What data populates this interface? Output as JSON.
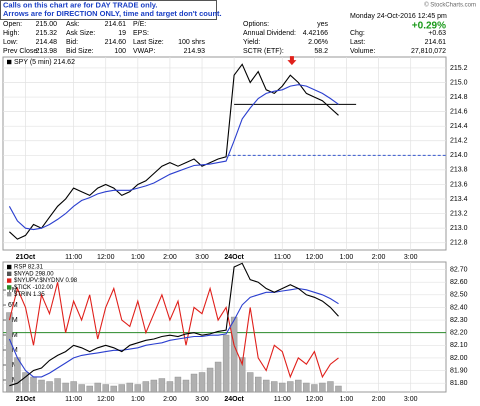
{
  "notice": [
    "Calls on this chart are for DAY TRADE only.",
    "Arrows are for DIRECTION ONLY, time and target don't count."
  ],
  "copyright": "© StockCharts.com",
  "quote": {
    "rows": [
      [
        [
          "Open:",
          "215.00"
        ],
        [
          "Ask:",
          "214.61"
        ],
        [
          "P/E:"
        ],
        [
          "Options:",
          "yes"
        ]
      ],
      [
        [
          "High:",
          "215.32"
        ],
        [
          "Ask Size:",
          "19"
        ],
        [
          "EPS:"
        ],
        [
          "Annual Dividend:",
          "4.42166"
        ]
      ],
      [
        [
          "Low:",
          "214.48"
        ],
        [
          "Bid:",
          "214.60"
        ],
        [
          "Last Size:",
          "100 shrs"
        ],
        [
          "Yield:",
          "2.06%"
        ]
      ],
      [
        [
          "Prev Close:",
          "213.98"
        ],
        [
          "Bid Size:",
          "100"
        ],
        [
          "VWAP:",
          "214.93"
        ],
        [
          "SCTR (ETF):",
          "58.2"
        ]
      ]
    ],
    "date": "Monday 24-Oct-2016 12:45 pm",
    "change_pct": "+0.29%",
    "side": [
      [
        "Chg:",
        "+0.63"
      ],
      [
        "Last:",
        "214.61"
      ],
      [
        "Volume:",
        "27,810,072"
      ]
    ]
  },
  "chart_data": [
    {
      "type": "line",
      "legend": [
        {
          "name": "SPY (5 min) 214.62",
          "color": "#000000"
        }
      ],
      "x": [
        -0.5,
        -0.25,
        0,
        0.25,
        0.5,
        0.75,
        1,
        1.25,
        1.5,
        1.75,
        2,
        2.25,
        2.5,
        2.75,
        3,
        3.25,
        3.5,
        3.75,
        4,
        4.25,
        4.5,
        4.75,
        5,
        5.25,
        5.5,
        5.75,
        6,
        6.25,
        6.5,
        6.75,
        7,
        7.25,
        7.5,
        7.75,
        8,
        8.25,
        8.5,
        8.75,
        9,
        9.25,
        9.5,
        9.75
      ],
      "series": [
        {
          "color": "#000000",
          "values": [
            212.95,
            212.85,
            212.9,
            213.05,
            213.0,
            213.15,
            213.3,
            213.4,
            213.55,
            213.5,
            213.45,
            213.55,
            213.6,
            213.55,
            213.45,
            213.5,
            213.6,
            213.65,
            213.75,
            213.85,
            213.9,
            213.85,
            213.9,
            213.95,
            213.85,
            213.9,
            213.95,
            213.98,
            215.1,
            215.25,
            215.0,
            215.15,
            214.9,
            214.85,
            214.95,
            215.1,
            215.0,
            214.85,
            214.8,
            214.75,
            214.65,
            214.55
          ]
        },
        {
          "color": "#2b3fcf",
          "values": [
            213.3,
            213.1,
            213.0,
            212.98,
            213.0,
            213.05,
            213.12,
            213.2,
            213.3,
            213.38,
            213.42,
            213.47,
            213.5,
            213.52,
            213.52,
            213.52,
            213.55,
            213.58,
            213.62,
            213.68,
            213.74,
            213.78,
            213.82,
            213.86,
            213.87,
            213.88,
            213.9,
            213.92,
            214.2,
            214.5,
            214.65,
            214.78,
            214.85,
            214.88,
            214.9,
            214.95,
            214.97,
            214.95,
            214.9,
            214.85,
            214.78,
            214.7
          ]
        }
      ],
      "hlines": [
        {
          "y": 214.7,
          "x": [
            6.5,
            10.3
          ],
          "color": "#000000"
        },
        {
          "y": 214.0,
          "x": [
            6.3,
            13.1
          ],
          "color": "#3355cc",
          "dashed": true
        }
      ],
      "arrows": [
        {
          "x": 8.3,
          "y": 215.28,
          "color": "#e0201b"
        }
      ],
      "xlim": [
        -0.7,
        13.1
      ],
      "ylim": [
        212.7,
        215.35
      ],
      "grid": true,
      "xticks": [
        {
          "value": 0,
          "label": "21Oct"
        },
        {
          "value": 1.5,
          "label": "11:00"
        },
        {
          "value": 2.5,
          "label": "12:00"
        },
        {
          "value": 3.5,
          "label": "1:00"
        },
        {
          "value": 4.5,
          "label": "2:00"
        },
        {
          "value": 5.5,
          "label": "3:00"
        },
        {
          "value": 6.5,
          "label": "24Oct"
        },
        {
          "value": 8,
          "label": "11:00"
        },
        {
          "value": 9,
          "label": "12:00"
        },
        {
          "value": 10,
          "label": "1:00"
        },
        {
          "value": 11,
          "label": "2:00"
        },
        {
          "value": 12,
          "label": "3:00"
        }
      ],
      "yticks": [
        212.8,
        {
          "value": 213,
          "label": "213.0"
        },
        213.2,
        213.4,
        213.6,
        213.8,
        {
          "value": 214,
          "label": "214.0"
        },
        214.2,
        214.4,
        214.6,
        214.8,
        {
          "value": 215,
          "label": "215.0"
        },
        215.2
      ]
    },
    {
      "type": "line",
      "legend": [
        {
          "name": "RSP 82.31",
          "color": "#000000"
        },
        {
          "name": "$NYAD 298.00",
          "color": "#555555"
        },
        {
          "name": "$NYUPV:$NYDNV 0.98",
          "color": "#e0201b"
        },
        {
          "name": "$TICK -102.00",
          "color": "#2a8a2a"
        },
        {
          "name": "$TRIN 1.35",
          "color": "#999999"
        }
      ],
      "x": [
        -0.5,
        -0.25,
        0,
        0.25,
        0.5,
        0.75,
        1,
        1.25,
        1.5,
        1.75,
        2,
        2.25,
        2.5,
        2.75,
        3,
        3.25,
        3.5,
        3.75,
        4,
        4.25,
        4.5,
        4.75,
        5,
        5.25,
        5.5,
        5.75,
        6,
        6.25,
        6.5,
        6.75,
        7,
        7.25,
        7.5,
        7.75,
        8,
        8.25,
        8.5,
        8.75,
        9,
        9.25,
        9.5,
        9.75
      ],
      "series": [
        {
          "type": "bar",
          "axis": "y2",
          "color": "#b0b0b0",
          "values": [
            5.5,
            2.5,
            1.5,
            1.2,
            1.0,
            0.9,
            1.1,
            0.8,
            0.9,
            0.7,
            0.6,
            0.8,
            0.7,
            0.6,
            0.7,
            0.8,
            0.7,
            0.9,
            1.0,
            1.1,
            0.9,
            1.2,
            1.0,
            1.4,
            1.5,
            1.8,
            2.2,
            4.0,
            5.2,
            2.5,
            1.5,
            1.2,
            1.0,
            0.9,
            0.8,
            0.9,
            1.0,
            0.8,
            0.7,
            0.8,
            0.9,
            0.6
          ]
        },
        {
          "color": "#e0201b",
          "values": [
            82.3,
            82.55,
            82.4,
            82.1,
            82.5,
            82.35,
            82.6,
            82.2,
            82.45,
            82.3,
            82.5,
            82.15,
            82.4,
            82.55,
            82.3,
            82.25,
            82.45,
            82.2,
            82.35,
            82.5,
            82.3,
            82.45,
            82.1,
            82.4,
            82.35,
            82.55,
            82.3,
            82.4,
            82.1,
            81.95,
            82.4,
            82.0,
            81.9,
            82.1,
            82.05,
            81.85,
            82.0,
            81.95,
            82.05,
            81.85,
            81.95,
            82.0
          ]
        },
        {
          "color": "#2b3fcf",
          "values": [
            82.15,
            82.0,
            81.9,
            81.85,
            81.85,
            81.88,
            81.92,
            81.96,
            82.0,
            82.02,
            82.03,
            82.04,
            82.05,
            82.06,
            82.06,
            82.07,
            82.08,
            82.1,
            82.11,
            82.12,
            82.14,
            82.15,
            82.16,
            82.17,
            82.17,
            82.18,
            82.18,
            82.19,
            82.3,
            82.42,
            82.48,
            82.5,
            82.52,
            82.52,
            82.53,
            82.54,
            82.55,
            82.54,
            82.52,
            82.5,
            82.47,
            82.43
          ]
        },
        {
          "color": "#000000",
          "values": [
            81.78,
            81.8,
            81.85,
            81.9,
            81.92,
            81.98,
            82.02,
            82.05,
            82.1,
            82.08,
            82.05,
            82.08,
            82.1,
            82.08,
            82.05,
            82.1,
            82.12,
            82.14,
            82.15,
            82.17,
            82.18,
            82.17,
            82.19,
            82.2,
            82.18,
            82.19,
            82.21,
            82.22,
            82.72,
            82.75,
            82.62,
            82.6,
            82.55,
            82.52,
            82.55,
            82.58,
            82.55,
            82.5,
            82.48,
            82.45,
            82.4,
            82.33
          ]
        }
      ],
      "hlines": [
        {
          "y": 82.2,
          "x": [
            -0.7,
            13.1
          ],
          "color": "#2a8a2a"
        }
      ],
      "xlim": [
        -0.7,
        13.1
      ],
      "ylim": [
        81.73,
        82.76
      ],
      "y2lim": [
        0.2,
        8.87
      ],
      "grid": true,
      "xticks": [
        {
          "value": 0,
          "label": "21Oct"
        },
        {
          "value": 1.5,
          "label": "11:00"
        },
        {
          "value": 2.5,
          "label": "12:00"
        },
        {
          "value": 3.5,
          "label": "1:00"
        },
        {
          "value": 4.5,
          "label": "2:00"
        },
        {
          "value": 5.5,
          "label": "3:00"
        },
        {
          "value": 6.5,
          "label": "24Oct"
        },
        {
          "value": 8,
          "label": "11:00"
        },
        {
          "value": 9,
          "label": "12:00"
        },
        {
          "value": 10,
          "label": "1:00"
        },
        {
          "value": 11,
          "label": "2:00"
        },
        {
          "value": 12,
          "label": "3:00"
        }
      ],
      "yticks": [
        {
          "value": 81.8,
          "label": "81.80"
        },
        {
          "value": 81.9,
          "label": "81.90"
        },
        {
          "value": 82.0,
          "label": "82.00"
        },
        {
          "value": 82.1,
          "label": "82.10"
        },
        {
          "value": 82.2,
          "label": "82.20"
        },
        {
          "value": 82.3,
          "label": "82.30"
        },
        {
          "value": 82.4,
          "label": "82.40"
        },
        {
          "value": 82.5,
          "label": "82.50"
        },
        {
          "value": 82.6,
          "label": "82.60"
        },
        {
          "value": 82.7,
          "label": "82.70"
        }
      ],
      "y2ticks": [
        {
          "value": 1,
          "label": "1M"
        },
        {
          "value": 2,
          "label": "2M"
        },
        {
          "value": 3,
          "label": "3M"
        },
        {
          "value": 4,
          "label": "4M"
        },
        {
          "value": 5,
          "label": "5M"
        },
        {
          "value": 6,
          "label": "6M"
        },
        {
          "value": 7,
          "label": "7M"
        }
      ]
    }
  ]
}
